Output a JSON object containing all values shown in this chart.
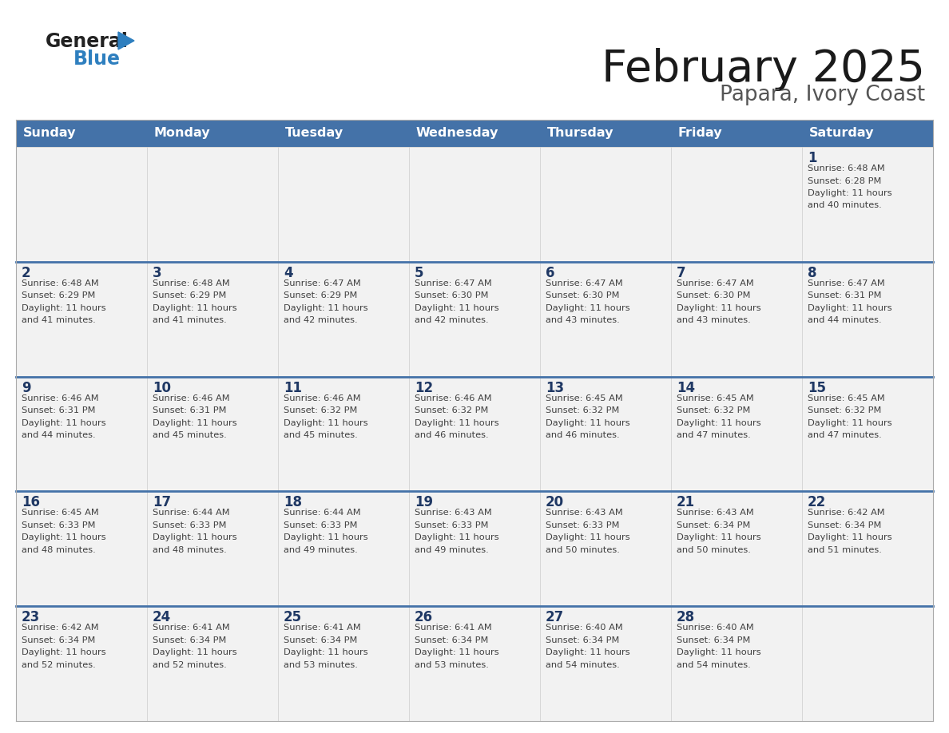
{
  "title": "February 2025",
  "subtitle": "Papara, Ivory Coast",
  "header_bg": "#4472A8",
  "header_text_color": "#FFFFFF",
  "day_names": [
    "Sunday",
    "Monday",
    "Tuesday",
    "Wednesday",
    "Thursday",
    "Friday",
    "Saturday"
  ],
  "cell_bg": "#F2F2F2",
  "day_num_color": "#1F3864",
  "text_color": "#404040",
  "divider_color": "#4472A8",
  "weeks": [
    [
      {
        "day": null,
        "info": null
      },
      {
        "day": null,
        "info": null
      },
      {
        "day": null,
        "info": null
      },
      {
        "day": null,
        "info": null
      },
      {
        "day": null,
        "info": null
      },
      {
        "day": null,
        "info": null
      },
      {
        "day": 1,
        "info": "Sunrise: 6:48 AM\nSunset: 6:28 PM\nDaylight: 11 hours\nand 40 minutes."
      }
    ],
    [
      {
        "day": 2,
        "info": "Sunrise: 6:48 AM\nSunset: 6:29 PM\nDaylight: 11 hours\nand 41 minutes."
      },
      {
        "day": 3,
        "info": "Sunrise: 6:48 AM\nSunset: 6:29 PM\nDaylight: 11 hours\nand 41 minutes."
      },
      {
        "day": 4,
        "info": "Sunrise: 6:47 AM\nSunset: 6:29 PM\nDaylight: 11 hours\nand 42 minutes."
      },
      {
        "day": 5,
        "info": "Sunrise: 6:47 AM\nSunset: 6:30 PM\nDaylight: 11 hours\nand 42 minutes."
      },
      {
        "day": 6,
        "info": "Sunrise: 6:47 AM\nSunset: 6:30 PM\nDaylight: 11 hours\nand 43 minutes."
      },
      {
        "day": 7,
        "info": "Sunrise: 6:47 AM\nSunset: 6:30 PM\nDaylight: 11 hours\nand 43 minutes."
      },
      {
        "day": 8,
        "info": "Sunrise: 6:47 AM\nSunset: 6:31 PM\nDaylight: 11 hours\nand 44 minutes."
      }
    ],
    [
      {
        "day": 9,
        "info": "Sunrise: 6:46 AM\nSunset: 6:31 PM\nDaylight: 11 hours\nand 44 minutes."
      },
      {
        "day": 10,
        "info": "Sunrise: 6:46 AM\nSunset: 6:31 PM\nDaylight: 11 hours\nand 45 minutes."
      },
      {
        "day": 11,
        "info": "Sunrise: 6:46 AM\nSunset: 6:32 PM\nDaylight: 11 hours\nand 45 minutes."
      },
      {
        "day": 12,
        "info": "Sunrise: 6:46 AM\nSunset: 6:32 PM\nDaylight: 11 hours\nand 46 minutes."
      },
      {
        "day": 13,
        "info": "Sunrise: 6:45 AM\nSunset: 6:32 PM\nDaylight: 11 hours\nand 46 minutes."
      },
      {
        "day": 14,
        "info": "Sunrise: 6:45 AM\nSunset: 6:32 PM\nDaylight: 11 hours\nand 47 minutes."
      },
      {
        "day": 15,
        "info": "Sunrise: 6:45 AM\nSunset: 6:32 PM\nDaylight: 11 hours\nand 47 minutes."
      }
    ],
    [
      {
        "day": 16,
        "info": "Sunrise: 6:45 AM\nSunset: 6:33 PM\nDaylight: 11 hours\nand 48 minutes."
      },
      {
        "day": 17,
        "info": "Sunrise: 6:44 AM\nSunset: 6:33 PM\nDaylight: 11 hours\nand 48 minutes."
      },
      {
        "day": 18,
        "info": "Sunrise: 6:44 AM\nSunset: 6:33 PM\nDaylight: 11 hours\nand 49 minutes."
      },
      {
        "day": 19,
        "info": "Sunrise: 6:43 AM\nSunset: 6:33 PM\nDaylight: 11 hours\nand 49 minutes."
      },
      {
        "day": 20,
        "info": "Sunrise: 6:43 AM\nSunset: 6:33 PM\nDaylight: 11 hours\nand 50 minutes."
      },
      {
        "day": 21,
        "info": "Sunrise: 6:43 AM\nSunset: 6:34 PM\nDaylight: 11 hours\nand 50 minutes."
      },
      {
        "day": 22,
        "info": "Sunrise: 6:42 AM\nSunset: 6:34 PM\nDaylight: 11 hours\nand 51 minutes."
      }
    ],
    [
      {
        "day": 23,
        "info": "Sunrise: 6:42 AM\nSunset: 6:34 PM\nDaylight: 11 hours\nand 52 minutes."
      },
      {
        "day": 24,
        "info": "Sunrise: 6:41 AM\nSunset: 6:34 PM\nDaylight: 11 hours\nand 52 minutes."
      },
      {
        "day": 25,
        "info": "Sunrise: 6:41 AM\nSunset: 6:34 PM\nDaylight: 11 hours\nand 53 minutes."
      },
      {
        "day": 26,
        "info": "Sunrise: 6:41 AM\nSunset: 6:34 PM\nDaylight: 11 hours\nand 53 minutes."
      },
      {
        "day": 27,
        "info": "Sunrise: 6:40 AM\nSunset: 6:34 PM\nDaylight: 11 hours\nand 54 minutes."
      },
      {
        "day": 28,
        "info": "Sunrise: 6:40 AM\nSunset: 6:34 PM\nDaylight: 11 hours\nand 54 minutes."
      },
      {
        "day": null,
        "info": null
      }
    ]
  ],
  "logo_general_color": "#222222",
  "logo_blue_color": "#2E7FBF",
  "logo_triangle_color": "#2E7FBF"
}
